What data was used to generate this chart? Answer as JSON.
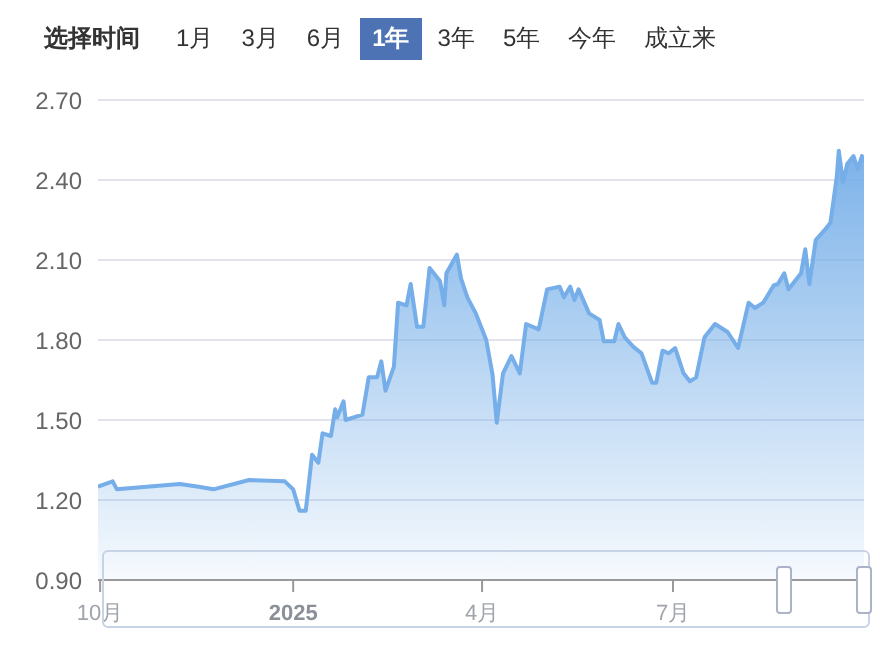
{
  "chart_data": {
    "type": "area",
    "annotations": [
      "选择时间",
      "1月",
      "3月",
      "6月",
      "1年",
      "3年",
      "5年",
      "今年",
      "成立来"
    ],
    "x": [
      "2024-09-30",
      "2024-10-07",
      "2024-10-09",
      "2024-11-08",
      "2024-11-17",
      "2024-11-24",
      "2024-12-11",
      "2024-12-28",
      "2025-01-01",
      "2025-01-04",
      "2025-01-07",
      "2025-01-10",
      "2025-01-13",
      "2025-01-15",
      "2025-01-19",
      "2025-01-21",
      "2025-01-22",
      "2025-01-25",
      "2025-01-26",
      "2025-02-03",
      "2025-02-06",
      "2025-02-10",
      "2025-02-12",
      "2025-02-14",
      "2025-02-18",
      "2025-02-20",
      "2025-02-24",
      "2025-02-26",
      "2025-03-01",
      "2025-03-04",
      "2025-03-07",
      "2025-03-12",
      "2025-03-14",
      "2025-03-15",
      "2025-03-20",
      "2025-03-22",
      "2025-03-25",
      "2025-03-29",
      "2025-03-31",
      "2025-04-03",
      "2025-04-06",
      "2025-04-08",
      "2025-04-11",
      "2025-04-15",
      "2025-04-19",
      "2025-04-22",
      "2025-04-28",
      "2025-05-02",
      "2025-05-08",
      "2025-05-10",
      "2025-05-13",
      "2025-05-15",
      "2025-05-17",
      "2025-05-22",
      "2025-05-27",
      "2025-05-29",
      "2025-06-03",
      "2025-06-05",
      "2025-06-08",
      "2025-06-12",
      "2025-06-16",
      "2025-06-21",
      "2025-06-23",
      "2025-06-26",
      "2025-06-29",
      "2025-07-02",
      "2025-07-06",
      "2025-07-09",
      "2025-07-12",
      "2025-07-16",
      "2025-07-21",
      "2025-07-27",
      "2025-08-01",
      "2025-08-06",
      "2025-08-09",
      "2025-08-13",
      "2025-08-18",
      "2025-08-20",
      "2025-08-23",
      "2025-08-25",
      "2025-08-28",
      "2025-08-31",
      "2025-09-02",
      "2025-09-04",
      "2025-09-07",
      "2025-09-11",
      "2025-09-14",
      "2025-09-17",
      "2025-09-18",
      "2025-09-20",
      "2025-09-22",
      "2025-09-25",
      "2025-09-27",
      "2025-09-29",
      "2025-09-30"
    ],
    "series": [
      {
        "color": "#75aee8",
        "values": [
          1.25,
          1.27,
          1.24,
          1.26,
          1.25,
          1.24,
          1.275,
          1.27,
          1.24,
          1.16,
          1.16,
          1.37,
          1.34,
          1.45,
          1.44,
          1.54,
          1.51,
          1.57,
          1.5,
          1.52,
          1.66,
          1.66,
          1.72,
          1.61,
          1.7,
          1.94,
          1.93,
          2.01,
          1.85,
          1.85,
          2.07,
          2.02,
          1.93,
          2.05,
          2.12,
          2.03,
          1.96,
          1.9,
          1.86,
          1.8,
          1.67,
          1.49,
          1.675,
          1.74,
          1.675,
          1.86,
          1.84,
          1.99,
          2.0,
          1.96,
          2.0,
          1.95,
          1.99,
          1.9,
          1.875,
          1.795,
          1.795,
          1.86,
          1.81,
          1.775,
          1.75,
          1.64,
          1.64,
          1.76,
          1.75,
          1.77,
          1.675,
          1.645,
          1.66,
          1.81,
          1.86,
          1.83,
          1.77,
          1.94,
          1.92,
          1.94,
          2.005,
          2.01,
          2.05,
          1.99,
          2.02,
          2.05,
          2.14,
          2.01,
          2.175,
          2.21,
          2.24,
          2.41,
          2.51,
          2.39,
          2.46,
          2.49,
          2.44,
          2.49,
          2.47
        ]
      }
    ],
    "xlim": [
      "2024-09-30",
      "2025-09-30"
    ],
    "xticks": [
      {
        "value": "2024-10-01",
        "label": "10月"
      },
      {
        "value": "2025-01-01",
        "label": "2025"
      },
      {
        "value": "2025-04-01",
        "label": "4月"
      },
      {
        "value": "2025-07-01",
        "label": "7月"
      }
    ],
    "ylim": [
      0.9,
      2.7
    ],
    "yticks": [
      {
        "value": 0.9,
        "label": "0.90"
      },
      {
        "value": 1.2,
        "label": "1.20"
      },
      {
        "value": 1.5,
        "label": "1.50"
      },
      {
        "value": 1.8,
        "label": "1.80"
      },
      {
        "value": 2.1,
        "label": "2.10"
      },
      {
        "value": 2.4,
        "label": "2.40"
      },
      {
        "value": 2.7,
        "label": "2.70"
      }
    ],
    "grid": "y"
  }
}
